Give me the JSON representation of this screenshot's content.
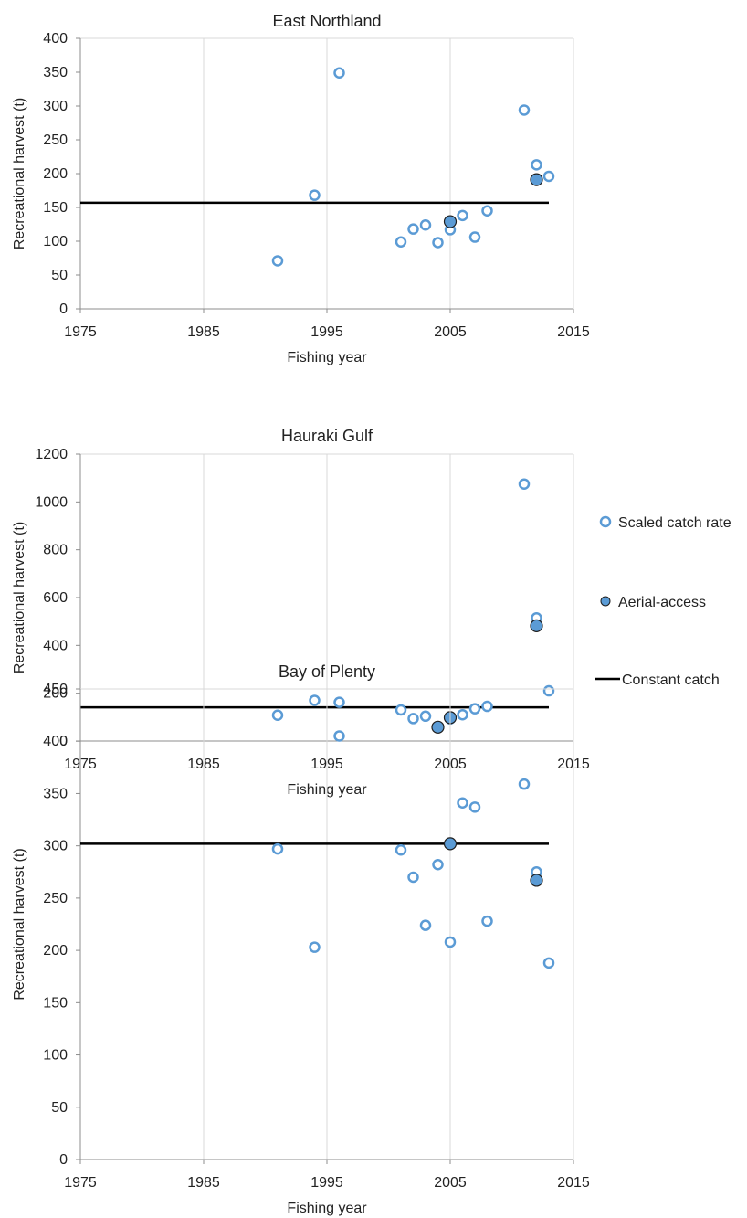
{
  "chart_data": [
    {
      "type": "scatter",
      "title": "East Northland",
      "xlabel": "Fishing year",
      "ylabel": "Recreational harvest (t)",
      "xlim": [
        1975,
        2015
      ],
      "ylim": [
        0,
        400
      ],
      "xticks": [
        1975,
        1985,
        1995,
        2005,
        2015
      ],
      "yticks": [
        0,
        50,
        100,
        150,
        200,
        250,
        300,
        350,
        400
      ],
      "grid": "vertical",
      "series": [
        {
          "name": "Scaled catch rate",
          "points": [
            {
              "x": 1991,
              "y": 71
            },
            {
              "x": 1994,
              "y": 168
            },
            {
              "x": 1996,
              "y": 349
            },
            {
              "x": 2001,
              "y": 99
            },
            {
              "x": 2002,
              "y": 118
            },
            {
              "x": 2003,
              "y": 124
            },
            {
              "x": 2004,
              "y": 98
            },
            {
              "x": 2005,
              "y": 117
            },
            {
              "x": 2006,
              "y": 138
            },
            {
              "x": 2007,
              "y": 106
            },
            {
              "x": 2008,
              "y": 145
            },
            {
              "x": 2011,
              "y": 294
            },
            {
              "x": 2012,
              "y": 213
            },
            {
              "x": 2013,
              "y": 196
            }
          ]
        },
        {
          "name": "Aerial-access",
          "points": [
            {
              "x": 2005,
              "y": 129
            },
            {
              "x": 2012,
              "y": 191
            }
          ]
        },
        {
          "name": "Constant catch",
          "line": {
            "x": [
              1975,
              2013
            ],
            "y": 157
          }
        }
      ]
    },
    {
      "type": "scatter",
      "title": "Hauraki Gulf",
      "xlabel": "Fishing year",
      "ylabel": "Recreational harvest (t)",
      "xlim": [
        1975,
        2015
      ],
      "ylim": [
        0,
        1200
      ],
      "xticks": [
        1975,
        1985,
        1995,
        2005,
        2015
      ],
      "yticks": [
        0,
        200,
        400,
        600,
        800,
        1000,
        1200
      ],
      "grid": "vertical",
      "series": [
        {
          "name": "Scaled catch rate",
          "points": [
            {
              "x": 1991,
              "y": 108
            },
            {
              "x": 1994,
              "y": 170
            },
            {
              "x": 1996,
              "y": 162
            },
            {
              "x": 2001,
              "y": 130
            },
            {
              "x": 2002,
              "y": 94
            },
            {
              "x": 2003,
              "y": 104
            },
            {
              "x": 2004,
              "y": 58
            },
            {
              "x": 2005,
              "y": 93
            },
            {
              "x": 2006,
              "y": 110
            },
            {
              "x": 2007,
              "y": 135
            },
            {
              "x": 2008,
              "y": 145
            },
            {
              "x": 2011,
              "y": 1075
            },
            {
              "x": 2012,
              "y": 515
            },
            {
              "x": 2013,
              "y": 210
            }
          ]
        },
        {
          "name": "Aerial-access",
          "points": [
            {
              "x": 2004,
              "y": 58
            },
            {
              "x": 2005,
              "y": 98
            },
            {
              "x": 2012,
              "y": 482
            }
          ]
        },
        {
          "name": "Constant catch",
          "line": {
            "x": [
              1975,
              2013
            ],
            "y": 141
          }
        }
      ]
    },
    {
      "type": "scatter",
      "title": "Bay of Plenty",
      "xlabel": "Fishing year",
      "ylabel": "Recreational harvest (t)",
      "xlim": [
        1975,
        2015
      ],
      "ylim": [
        0,
        450
      ],
      "xticks": [
        1975,
        1985,
        1995,
        2005,
        2015
      ],
      "yticks": [
        0,
        50,
        100,
        150,
        200,
        250,
        300,
        350,
        400,
        450
      ],
      "grid": "vertical",
      "series": [
        {
          "name": "Scaled catch rate",
          "points": [
            {
              "x": 1991,
              "y": 297
            },
            {
              "x": 1994,
              "y": 203
            },
            {
              "x": 1996,
              "y": 405
            },
            {
              "x": 2001,
              "y": 296
            },
            {
              "x": 2002,
              "y": 270
            },
            {
              "x": 2003,
              "y": 224
            },
            {
              "x": 2004,
              "y": 282
            },
            {
              "x": 2005,
              "y": 208
            },
            {
              "x": 2006,
              "y": 341
            },
            {
              "x": 2007,
              "y": 337
            },
            {
              "x": 2008,
              "y": 228
            },
            {
              "x": 2011,
              "y": 359
            },
            {
              "x": 2012,
              "y": 275
            },
            {
              "x": 2013,
              "y": 188
            }
          ]
        },
        {
          "name": "Aerial-access",
          "points": [
            {
              "x": 2005,
              "y": 302
            },
            {
              "x": 2012,
              "y": 267
            }
          ]
        },
        {
          "name": "Constant catch",
          "line": {
            "x": [
              1975,
              2013
            ],
            "y": 302
          }
        }
      ]
    }
  ],
  "legend": {
    "placement": "right",
    "items": [
      {
        "label": "Scaled catch rate",
        "marker": "hollow-circle"
      },
      {
        "label": "Aerial-access",
        "marker": "filled-circle"
      },
      {
        "label": "Constant catch",
        "marker": "line"
      }
    ]
  },
  "colors": {
    "scaled_stroke": "#5B9BD5",
    "aerial_fill": "#5B9BD5",
    "aerial_stroke": "#1F1F1F",
    "constant_line": "#000000",
    "grid": "#D9D9D9",
    "axis": "#8C8C8C"
  }
}
